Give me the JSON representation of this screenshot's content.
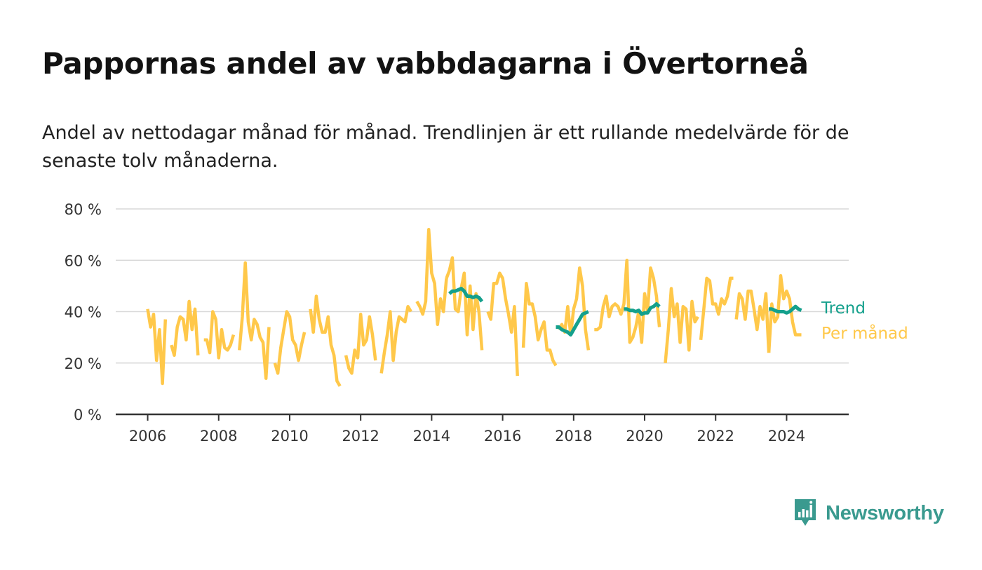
{
  "title": "Pappornas andel av vabbdagarna i Övertorneå",
  "subtitle": "Andel av nettodagar månad för månad. Trendlinjen är ett rullande medelvärde för de senaste tolv månaderna.",
  "logo_text": "Newsworthy",
  "colors": {
    "monthly": "#ffc84a",
    "trend": "#14a08c",
    "grid": "#d9d9d9",
    "axis": "#333333",
    "logo": "#3a9a8f"
  },
  "chart_data": {
    "type": "line",
    "title": "Pappornas andel av vabbdagarna i Övertorneå",
    "x_ticks": [
      "2006",
      "2008",
      "2010",
      "2012",
      "2014",
      "2016",
      "2018",
      "2020",
      "2022",
      "2024"
    ],
    "y_ticks": [
      "0 %",
      "20 %",
      "40 %",
      "60 %",
      "80 %"
    ],
    "ylim": [
      0,
      80
    ],
    "xlim": [
      2005.1,
      2025.75
    ],
    "grid": true,
    "legend_placement": "right-end",
    "series": [
      {
        "name": "Per månad",
        "color": "#ffc84a",
        "segments": [
          {
            "x": [
              2006.0,
              2006.083,
              2006.167,
              2006.25,
              2006.333,
              2006.417,
              2006.5
            ],
            "y": [
              41,
              34,
              39,
              21,
              33,
              12,
              37
            ]
          },
          {
            "x": [
              2006.667,
              2006.75,
              2006.833,
              2006.917,
              2007.0,
              2007.083,
              2007.167,
              2007.25,
              2007.333,
              2007.417
            ],
            "y": [
              27,
              23,
              34,
              38,
              37,
              29,
              44,
              33,
              41,
              23
            ]
          },
          {
            "x": [
              2007.583,
              2007.667,
              2007.75,
              2007.833,
              2007.917,
              2008.0,
              2008.083,
              2008.167,
              2008.25,
              2008.333,
              2008.417
            ],
            "y": [
              29,
              29,
              24,
              40,
              37,
              22,
              33,
              26,
              25,
              27,
              31
            ]
          },
          {
            "x": [
              2008.583,
              2008.667,
              2008.75,
              2008.833,
              2008.917,
              2009.0,
              2009.083,
              2009.167,
              2009.25,
              2009.333,
              2009.417
            ],
            "y": [
              25,
              38,
              59,
              36,
              29,
              37,
              35,
              30,
              28,
              14,
              34
            ]
          },
          {
            "x": [
              2009.583,
              2009.667,
              2009.75,
              2009.833,
              2009.917,
              2010.0,
              2010.083,
              2010.167,
              2010.25,
              2010.333,
              2010.417
            ],
            "y": [
              20,
              16,
              26,
              33,
              40,
              38,
              29,
              27,
              21,
              27,
              32
            ]
          },
          {
            "x": [
              2010.583,
              2010.667,
              2010.75,
              2010.833,
              2010.917,
              2011.0,
              2011.083,
              2011.167,
              2011.25,
              2011.333,
              2011.417
            ],
            "y": [
              41,
              32,
              46,
              37,
              32,
              32,
              38,
              27,
              23,
              13,
              11
            ]
          },
          {
            "x": [
              2011.583,
              2011.667,
              2011.75,
              2011.833,
              2011.917,
              2012.0,
              2012.083,
              2012.167,
              2012.25,
              2012.333,
              2012.417
            ],
            "y": [
              23,
              18,
              16,
              25,
              22,
              39,
              27,
              29,
              38,
              31,
              21
            ]
          },
          {
            "x": [
              2012.583,
              2012.667,
              2012.75,
              2012.833,
              2012.917,
              2013.0,
              2013.083,
              2013.167,
              2013.25,
              2013.333,
              2013.417
            ],
            "y": [
              16,
              24,
              31,
              40,
              21,
              32,
              38,
              37,
              36,
              42,
              40
            ]
          },
          {
            "x": [
              2013.583,
              2013.667,
              2013.75,
              2013.833,
              2013.917,
              2014.0,
              2014.083,
              2014.167,
              2014.25,
              2014.333,
              2014.417
            ],
            "y": [
              44,
              42,
              39,
              44,
              72,
              55,
              51,
              35,
              45,
              40,
              53
            ]
          },
          {
            "x": [
              2014.417,
              2014.5,
              2014.583,
              2014.667,
              2014.75,
              2014.833,
              2014.917,
              2015.0,
              2015.083,
              2015.167,
              2015.25,
              2015.333,
              2015.417
            ],
            "y": [
              53,
              56,
              61,
              41,
              40,
              49,
              55,
              31,
              50,
              33,
              47,
              40,
              25
            ]
          },
          {
            "x": [
              2015.583,
              2015.667,
              2015.75,
              2015.833,
              2015.917,
              2016.0,
              2016.083,
              2016.167,
              2016.25,
              2016.333,
              2016.417
            ],
            "y": [
              40,
              37,
              51,
              51,
              55,
              53,
              45,
              39,
              32,
              42,
              15
            ]
          },
          {
            "x": [
              2016.583,
              2016.667,
              2016.75,
              2016.833,
              2016.917,
              2017.0,
              2017.083,
              2017.167,
              2017.25,
              2017.333,
              2017.417,
              2017.5
            ],
            "y": [
              26,
              51,
              43,
              43,
              38,
              29,
              33,
              36,
              25,
              25,
              21,
              19
            ]
          },
          {
            "x": [
              2017.583,
              2017.667,
              2017.75,
              2017.833,
              2017.917,
              2018.0,
              2018.083,
              2018.167,
              2018.25,
              2018.333,
              2018.417
            ],
            "y": [
              33,
              35,
              32,
              42,
              31,
              41,
              45,
              57,
              50,
              33,
              25
            ]
          },
          {
            "x": [
              2018.583,
              2018.667,
              2018.75,
              2018.833,
              2018.917,
              2019.0,
              2019.083,
              2019.167,
              2019.25,
              2019.333,
              2019.417,
              2019.5,
              2019.583,
              2019.667,
              2019.75,
              2019.833,
              2019.917,
              2020.0,
              2020.083,
              2020.167,
              2020.25,
              2020.333,
              2020.417
            ],
            "y": [
              33,
              33,
              34,
              42,
              46,
              38,
              42,
              43,
              42,
              39,
              43,
              60,
              28,
              30,
              34,
              40,
              28,
              47,
              40,
              57,
              53,
              46,
              34
            ]
          },
          {
            "x": [
              2020.583,
              2020.667,
              2020.75,
              2020.833,
              2020.917,
              2021.0,
              2021.083,
              2021.167,
              2021.25,
              2021.333,
              2021.417,
              2021.5
            ],
            "y": [
              20,
              33,
              49,
              38,
              43,
              28,
              42,
              41,
              25,
              44,
              36,
              38
            ]
          },
          {
            "x": [
              2021.583,
              2021.667,
              2021.75,
              2021.833,
              2021.917,
              2022.0,
              2022.083,
              2022.167,
              2022.25,
              2022.333,
              2022.417,
              2022.5
            ],
            "y": [
              29,
              41,
              53,
              52,
              43,
              43,
              39,
              45,
              43,
              46,
              53,
              53
            ]
          },
          {
            "x": [
              2022.583,
              2022.667,
              2022.75,
              2022.833,
              2022.917,
              2023.0,
              2023.083,
              2023.167,
              2023.25,
              2023.333,
              2023.417,
              2023.5
            ],
            "y": [
              37,
              47,
              45,
              37,
              48,
              48,
              41,
              33,
              42,
              37,
              47,
              24
            ]
          },
          {
            "x": [
              2023.5,
              2023.583,
              2023.667,
              2023.75,
              2023.833,
              2023.917,
              2024.0,
              2024.083,
              2024.167,
              2024.25,
              2024.333,
              2024.417
            ],
            "y": [
              24,
              43,
              36,
              38,
              54,
              45,
              48,
              45,
              36,
              31,
              31,
              31
            ]
          }
        ]
      },
      {
        "name": "Trend",
        "color": "#14a08c",
        "segments": [
          {
            "x": [
              2014.5,
              2014.583,
              2014.667,
              2014.75,
              2014.833,
              2014.917,
              2015.0,
              2015.083,
              2015.167,
              2015.25,
              2015.333,
              2015.417
            ],
            "y": [
              47,
              48,
              48,
              48.5,
              49,
              48,
              46,
              46,
              45.5,
              46,
              45.5,
              44
            ]
          },
          {
            "x": [
              2017.5,
              2017.583,
              2017.667,
              2017.75,
              2017.833,
              2017.917,
              2018.0,
              2018.083,
              2018.167,
              2018.25,
              2018.333,
              2018.417
            ],
            "y": [
              34,
              34,
              33,
              32.5,
              32,
              31,
              33,
              35,
              37,
              39,
              39.5,
              40
            ]
          },
          {
            "x": [
              2019.417,
              2019.5,
              2019.583,
              2019.667,
              2019.75,
              2019.833,
              2019.917,
              2020.0,
              2020.083,
              2020.167,
              2020.25,
              2020.333,
              2020.417
            ],
            "y": [
              41,
              41,
              40.5,
              40.5,
              40,
              40.5,
              39,
              39.5,
              39.5,
              41.5,
              42,
              43,
              42
            ]
          },
          {
            "x": [
              2023.5,
              2023.583,
              2023.667,
              2023.75,
              2023.833,
              2023.917,
              2024.0,
              2024.083,
              2024.167,
              2024.25,
              2024.333,
              2024.417
            ],
            "y": [
              41,
              41,
              40.5,
              40,
              40,
              40,
              39.5,
              40,
              41,
              42,
              41,
              40.5
            ]
          }
        ]
      }
    ]
  }
}
